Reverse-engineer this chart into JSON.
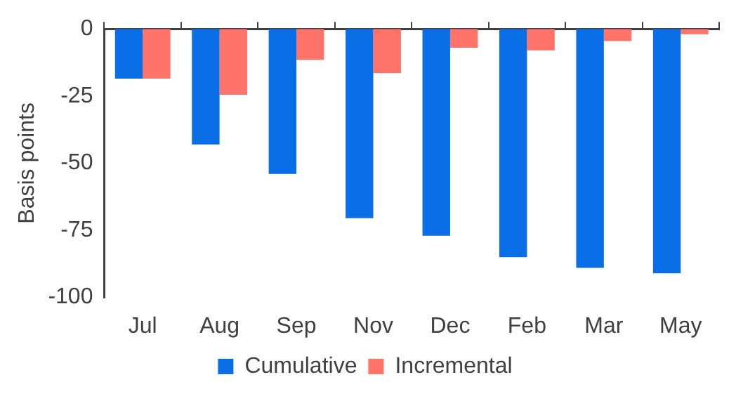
{
  "chart_data": {
    "type": "bar",
    "ylabel": "Basis points",
    "categories": [
      "Jul",
      "Aug",
      "Sep",
      "Nov",
      "Dec",
      "Feb",
      "Mar",
      "May"
    ],
    "series": [
      {
        "name": "Cumulative",
        "color": "#0a6fe6",
        "values": [
          -18.5,
          -43,
          -54,
          -70.5,
          -77,
          -85,
          -89,
          -91
        ]
      },
      {
        "name": "Incremental",
        "color": "#ff736a",
        "values": [
          -18.5,
          -24.5,
          -11.5,
          -16.5,
          -7,
          -8,
          -4.5,
          -2
        ]
      }
    ],
    "ylim": [
      -100,
      0
    ],
    "yticks": [
      -100,
      -75,
      -50,
      -25,
      0
    ],
    "grid": false,
    "legend": "bottom"
  }
}
